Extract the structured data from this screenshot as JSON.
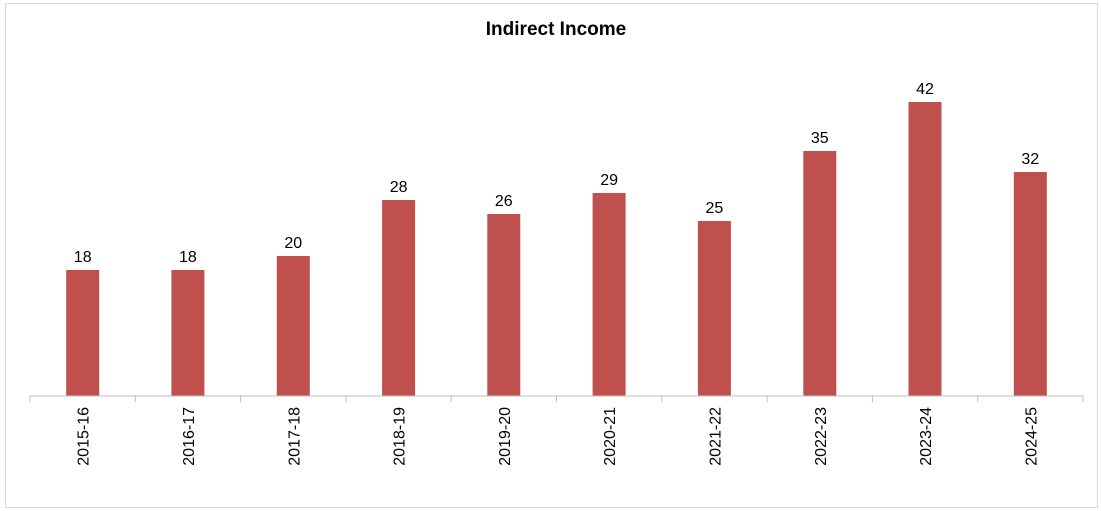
{
  "chart_data": {
    "type": "bar",
    "title": "Indirect Income",
    "xlabel": "",
    "ylabel": "",
    "categories": [
      "2015-16",
      "2016-17",
      "2017-18",
      "2018-19",
      "2019-20",
      "2020-21",
      "2021-22",
      "2022-23",
      "2023-24",
      "2024-25"
    ],
    "values": [
      18,
      18,
      20,
      28,
      26,
      29,
      25,
      35,
      42,
      32
    ],
    "data_labels": [
      "18",
      "18",
      "20",
      "28",
      "26",
      "29",
      "25",
      "35",
      "42",
      "32"
    ],
    "ylim": [
      0,
      48
    ],
    "grid": false,
    "legend": "none",
    "bar_color": "#c0504d",
    "axis_color": "#bfbfbf"
  }
}
